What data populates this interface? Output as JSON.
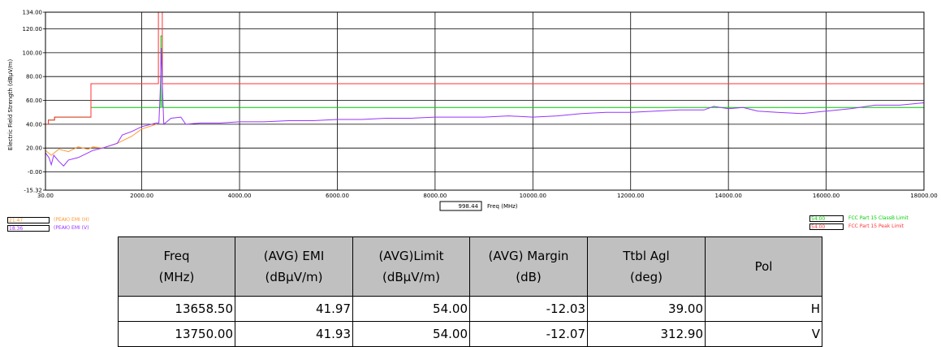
{
  "chart_data": {
    "type": "line",
    "title": "",
    "xlabel": "Freq (MHz)",
    "ylabel": "Electric Field Strength (dBµV/m)",
    "xlim": [
      30,
      18000
    ],
    "ylim": [
      -15.32,
      134
    ],
    "x_ticks": [
      "30.00",
      "2000.00",
      "4000.00",
      "6000.00",
      "8000.00",
      "10000.00",
      "12000.00",
      "14000.00",
      "16000.00",
      "18000.00"
    ],
    "y_ticks": [
      "134.00",
      "120.00",
      "100.00",
      "80.00",
      "60.00",
      "40.00",
      "20.00",
      "-0.00",
      "-15.32"
    ],
    "x_cursor": "998.44",
    "grid": true,
    "series": [
      {
        "name": "(PEAK) EMI (H)",
        "color": "#ff9933",
        "legend_value": "21.47",
        "points": [
          [
            30,
            18
          ],
          [
            150,
            14
          ],
          [
            300,
            19
          ],
          [
            500,
            17
          ],
          [
            700,
            21
          ],
          [
            900,
            19
          ],
          [
            1000,
            21
          ],
          [
            1200,
            20
          ],
          [
            1500,
            24
          ],
          [
            1800,
            30
          ],
          [
            2000,
            36
          ],
          [
            2300,
            40
          ]
        ]
      },
      {
        "name": "(PEAK) EMI (V)",
        "color": "#9933ff",
        "legend_value": "18.36",
        "points": [
          [
            30,
            16
          ],
          [
            100,
            12
          ],
          [
            150,
            6
          ],
          [
            200,
            14
          ],
          [
            300,
            9
          ],
          [
            400,
            5
          ],
          [
            500,
            10
          ],
          [
            700,
            12
          ],
          [
            900,
            16
          ],
          [
            1000,
            18
          ],
          [
            1200,
            20
          ],
          [
            1500,
            24
          ],
          [
            1600,
            31
          ],
          [
            1800,
            34
          ],
          [
            2000,
            38
          ],
          [
            2200,
            40
          ],
          [
            2300,
            41
          ],
          [
            2350,
            41
          ],
          [
            2380,
            70
          ],
          [
            2400,
            104
          ],
          [
            2420,
            75
          ],
          [
            2450,
            40
          ],
          [
            2600,
            45
          ],
          [
            2800,
            46
          ],
          [
            2900,
            40
          ],
          [
            3200,
            41
          ],
          [
            3600,
            41
          ],
          [
            4000,
            42
          ],
          [
            4500,
            42
          ],
          [
            5000,
            43
          ],
          [
            5500,
            43
          ],
          [
            6000,
            44
          ],
          [
            6500,
            44
          ],
          [
            7000,
            45
          ],
          [
            7500,
            45
          ],
          [
            8000,
            46
          ],
          [
            8500,
            46
          ],
          [
            9000,
            46
          ],
          [
            9500,
            47
          ],
          [
            10000,
            46
          ],
          [
            10500,
            47
          ],
          [
            11000,
            49
          ],
          [
            11500,
            50
          ],
          [
            12000,
            50
          ],
          [
            12500,
            51
          ],
          [
            13000,
            52
          ],
          [
            13500,
            52
          ],
          [
            13700,
            55
          ],
          [
            14000,
            53
          ],
          [
            14300,
            54
          ],
          [
            14600,
            51
          ],
          [
            15000,
            50
          ],
          [
            15500,
            49
          ],
          [
            16000,
            51
          ],
          [
            16500,
            53
          ],
          [
            17000,
            56
          ],
          [
            17500,
            56
          ],
          [
            18000,
            58
          ]
        ]
      },
      {
        "name": "FCC Part 15 ClassB Limit",
        "color": "#00cc00",
        "legend_value": "54.00",
        "points": [
          [
            30,
            40
          ],
          [
            88,
            40
          ],
          [
            88,
            43.5
          ],
          [
            216,
            43.5
          ],
          [
            216,
            46
          ],
          [
            960,
            46
          ],
          [
            960,
            54
          ],
          [
            2390,
            54
          ],
          [
            2390,
            114
          ],
          [
            2420,
            114
          ],
          [
            2420,
            54
          ],
          [
            18000,
            54
          ]
        ]
      },
      {
        "name": "FCC Part 15 Peak Limit",
        "color": "#ff3333",
        "legend_value": "54.00",
        "points": [
          [
            30,
            40
          ],
          [
            88,
            40
          ],
          [
            88,
            43.5
          ],
          [
            216,
            43.5
          ],
          [
            216,
            46
          ],
          [
            960,
            46
          ],
          [
            960,
            74
          ],
          [
            2340,
            74
          ],
          [
            2340,
            134
          ],
          [
            2420,
            134
          ],
          [
            2420,
            74
          ],
          [
            18000,
            74
          ]
        ]
      }
    ]
  },
  "results_table": {
    "headers": [
      [
        "Freq",
        "(MHz)"
      ],
      [
        "(AVG) EMI",
        "(dBµV/m)"
      ],
      [
        "(AVG)Limit",
        "(dBµV/m)"
      ],
      [
        "(AVG) Margin",
        "(dB)"
      ],
      [
        "Ttbl Agl",
        "(deg)"
      ],
      [
        "Pol",
        ""
      ]
    ],
    "rows": [
      [
        "13658.50",
        "41.97",
        "54.00",
        "-12.03",
        "39.00",
        "H"
      ],
      [
        "13750.00",
        "41.93",
        "54.00",
        "-12.07",
        "312.90",
        "V"
      ]
    ]
  }
}
